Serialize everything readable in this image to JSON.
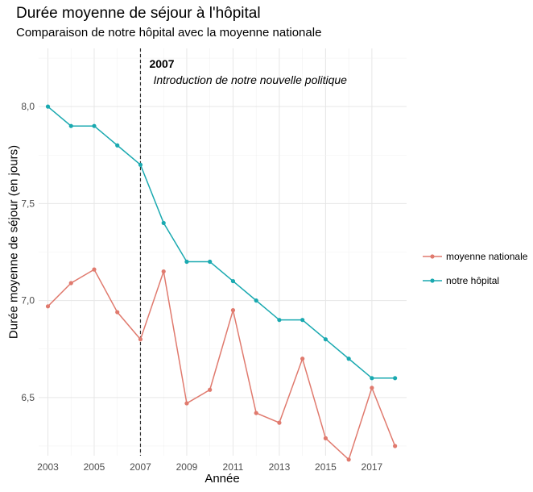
{
  "title": "Durée moyenne de séjour à l'hôpital",
  "subtitle": "Comparaison de notre hôpital avec la moyenne nationale",
  "chart_data": {
    "type": "line",
    "xlabel": "Année",
    "ylabel": "Durée moyenne de séjour (en jours)",
    "x": [
      2003,
      2004,
      2005,
      2006,
      2007,
      2008,
      2009,
      2010,
      2011,
      2012,
      2013,
      2014,
      2015,
      2016,
      2017,
      2018
    ],
    "xticks": [
      "2003",
      "2005",
      "2007",
      "2009",
      "2011",
      "2013",
      "2015",
      "2017"
    ],
    "yticks": [
      "6,5",
      "7,0",
      "7,5",
      "8,0"
    ],
    "xlim": [
      2002.6,
      2018.5
    ],
    "ylim": [
      6.2,
      8.3
    ],
    "grid": true,
    "legend_position": "right",
    "series": [
      {
        "name": "moyenne nationale",
        "color": "#e07a6e",
        "values": [
          6.97,
          7.09,
          7.16,
          6.94,
          6.8,
          7.15,
          6.47,
          6.54,
          6.95,
          6.42,
          6.37,
          6.7,
          6.29,
          6.18,
          6.55,
          6.25
        ]
      },
      {
        "name": "notre hôpital",
        "color": "#1aa9b0",
        "values": [
          8.0,
          7.9,
          7.9,
          7.8,
          7.7,
          7.4,
          7.2,
          7.2,
          7.1,
          7.0,
          6.9,
          6.9,
          6.8,
          6.7,
          6.6,
          6.6
        ]
      }
    ],
    "annotation": {
      "x": 2007,
      "year_label": "2007",
      "text": "Introduction de notre nouvelle politique"
    }
  }
}
